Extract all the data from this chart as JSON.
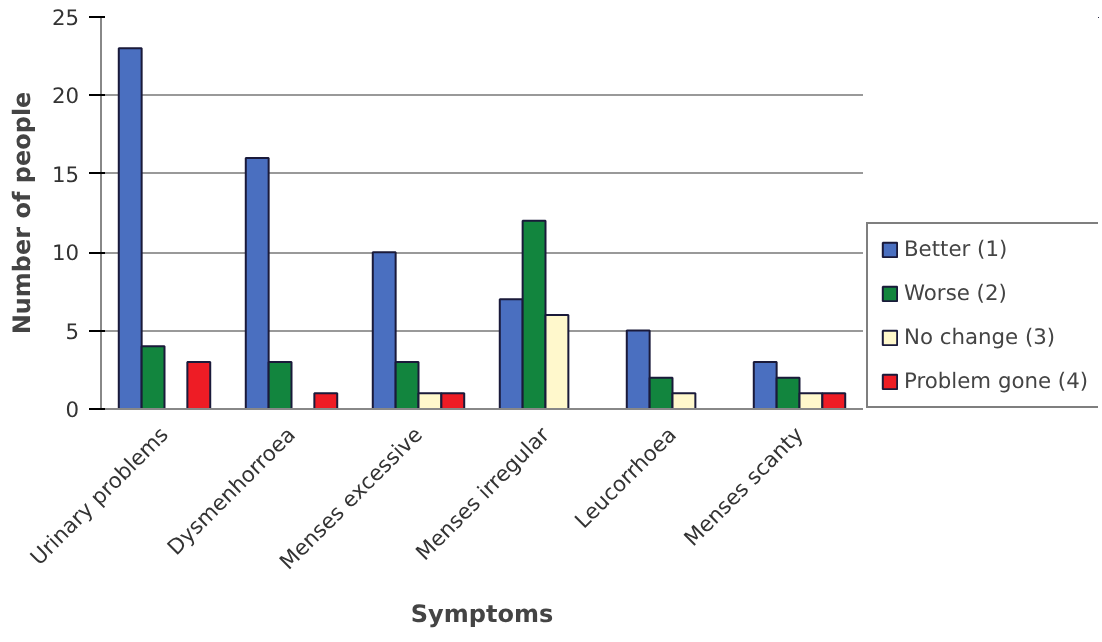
{
  "chart_data": {
    "type": "bar",
    "xlabel": "Symptoms",
    "ylabel": "Number of people",
    "categories": [
      "Urinary problems",
      "Dysmenhorroea",
      "Menses excessive",
      "Menses irregular",
      "Leucorrhoea",
      "Menses scanty"
    ],
    "series": [
      {
        "name": "Better (1)",
        "color": "#4a6fc0",
        "values": [
          23,
          16,
          10,
          7,
          5,
          3
        ]
      },
      {
        "name": "Worse (2)",
        "color": "#12853e",
        "values": [
          4,
          3,
          3,
          12,
          2,
          2
        ]
      },
      {
        "name": "No change (3)",
        "color": "#fff8cc",
        "values": [
          null,
          null,
          1,
          6,
          1,
          1
        ]
      },
      {
        "name": "Problem gone (4)",
        "color": "#ee1c25",
        "values": [
          3,
          1,
          1,
          null,
          null,
          1
        ]
      }
    ],
    "ylim": [
      0,
      25
    ],
    "yticks": [
      0,
      5,
      10,
      15,
      20,
      25
    ],
    "grid": "y",
    "legend": "bottom right"
  }
}
